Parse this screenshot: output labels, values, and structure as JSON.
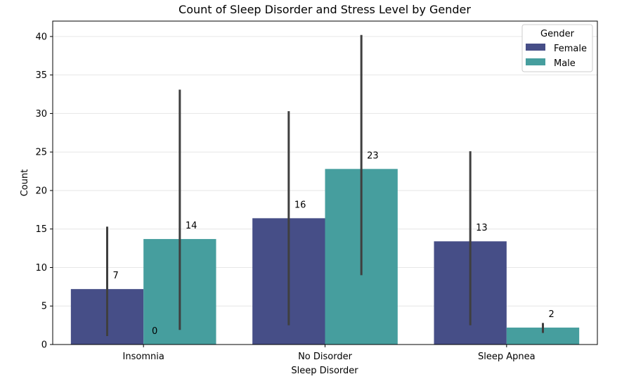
{
  "chart_data": {
    "type": "bar",
    "title": "Count of Sleep Disorder and Stress Level by Gender",
    "xlabel": "Sleep Disorder",
    "ylabel": "Count",
    "categories": [
      "Insomnia",
      "No Disorder",
      "Sleep Apnea"
    ],
    "ylim": [
      0,
      42
    ],
    "yticks": [
      0,
      5,
      10,
      15,
      20,
      25,
      30,
      35,
      40
    ],
    "grid": "horizontal",
    "legend": {
      "title": "Gender",
      "position": "top-right"
    },
    "series": [
      {
        "name": "Female",
        "color": "#464e87",
        "values": [
          7.2,
          16.4,
          13.4
        ],
        "labels": [
          "7",
          "16",
          "13"
        ],
        "error_low": [
          1.1,
          2.5,
          2.5
        ],
        "error_high": [
          15.3,
          30.3,
          25.1
        ]
      },
      {
        "name": "Male",
        "color": "#469e9e",
        "values": [
          13.7,
          22.8,
          2.2
        ],
        "labels": [
          "14",
          "23",
          "2"
        ],
        "error_low": [
          1.9,
          9.0,
          1.5
        ],
        "error_high": [
          33.1,
          40.2,
          2.8
        ]
      }
    ],
    "annotations": [
      "0"
    ]
  }
}
